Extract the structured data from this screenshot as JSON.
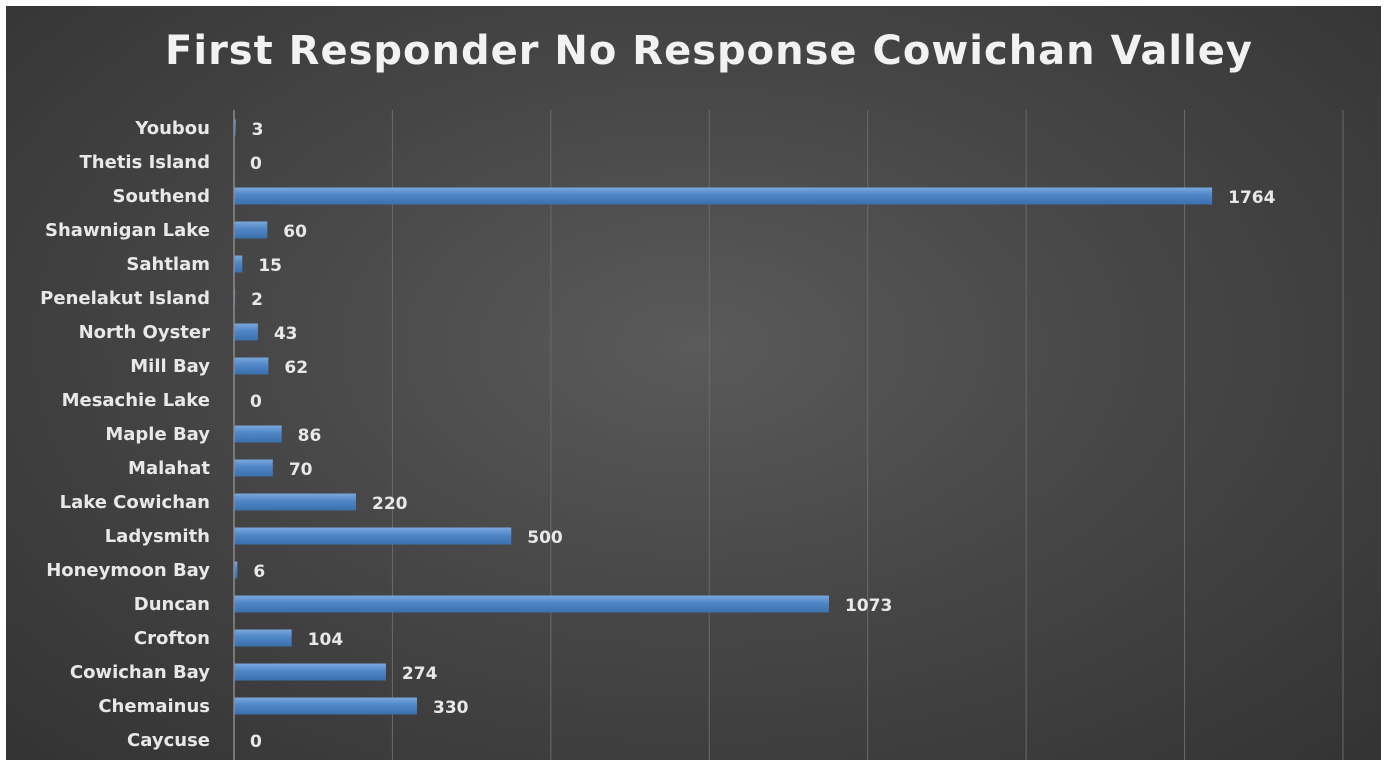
{
  "chart_data": {
    "type": "bar",
    "orientation": "horizontal",
    "title": "First Responder No Response Cowichan Valley",
    "xlabel": "",
    "ylabel": "",
    "xlim": [
      0,
      2000
    ],
    "grid": true,
    "legend": "none",
    "bar_color": "#4f86c6",
    "categories": [
      "Youbou",
      "Thetis Island",
      "Southend",
      "Shawnigan Lake",
      "Sahtlam",
      "Penelakut Island",
      "North Oyster",
      "Mill Bay",
      "Mesachie Lake",
      "Maple Bay",
      "Malahat",
      "Lake Cowichan",
      "Ladysmith",
      "Honeymoon Bay",
      "Duncan",
      "Crofton",
      "Cowichan Bay",
      "Chemainus",
      "Caycuse"
    ],
    "values": [
      3,
      0,
      1764,
      60,
      15,
      2,
      43,
      62,
      0,
      86,
      70,
      220,
      500,
      6,
      1073,
      104,
      274,
      330,
      0
    ]
  }
}
